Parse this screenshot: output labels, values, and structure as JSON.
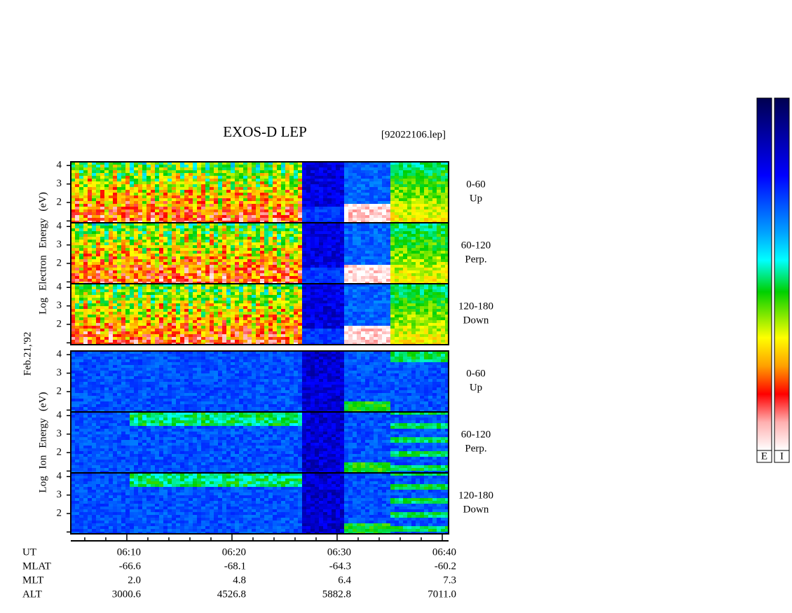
{
  "chart_data": {
    "type": "spectrogram",
    "title": "EXOS-D LEP",
    "file_label": "[92022106.lep]",
    "date_label": "Feb.21,'92",
    "groups": [
      {
        "ylabel": "Log Electron Energy (eV)",
        "colorbar_label": "E",
        "panels": [
          {
            "range": "0-60",
            "direction": "Up"
          },
          {
            "range": "60-120",
            "direction": "Perp."
          },
          {
            "range": "120-180",
            "direction": "Down"
          }
        ]
      },
      {
        "ylabel": "Log Ion Energy (eV)",
        "colorbar_label": "I",
        "panels": [
          {
            "range": "0-60",
            "direction": "Up"
          },
          {
            "range": "60-120",
            "direction": "Perp."
          },
          {
            "range": "120-180",
            "direction": "Down"
          }
        ]
      }
    ],
    "ylim": [
      0.9,
      4.2
    ],
    "yticks": [
      {
        "value": 1,
        "label": null
      },
      2,
      3,
      4
    ],
    "xlim": [
      4.67,
      40.6
    ],
    "xticks": [
      {
        "value": 10,
        "label": "06:10"
      },
      {
        "value": 20,
        "label": "06:20"
      },
      {
        "value": 30,
        "label": "06:30"
      },
      {
        "value": 40,
        "label": "06:40"
      }
    ],
    "minor_xticks": [
      6,
      8,
      12,
      14,
      16,
      18,
      22,
      24,
      26,
      28,
      32,
      34,
      36,
      38
    ],
    "ephemeris": {
      "ut_label": "UT",
      "rows": [
        {
          "label": "MLAT",
          "values": [
            "-66.6",
            "-68.1",
            "-64.3",
            "-60.2"
          ]
        },
        {
          "label": "MLT",
          "values": [
            "2.0",
            "4.8",
            "6.4",
            "7.3"
          ]
        },
        {
          "label": "ALT",
          "values": [
            "3000.6",
            "4526.8",
            "5882.8",
            "7011.0"
          ]
        }
      ]
    }
  }
}
